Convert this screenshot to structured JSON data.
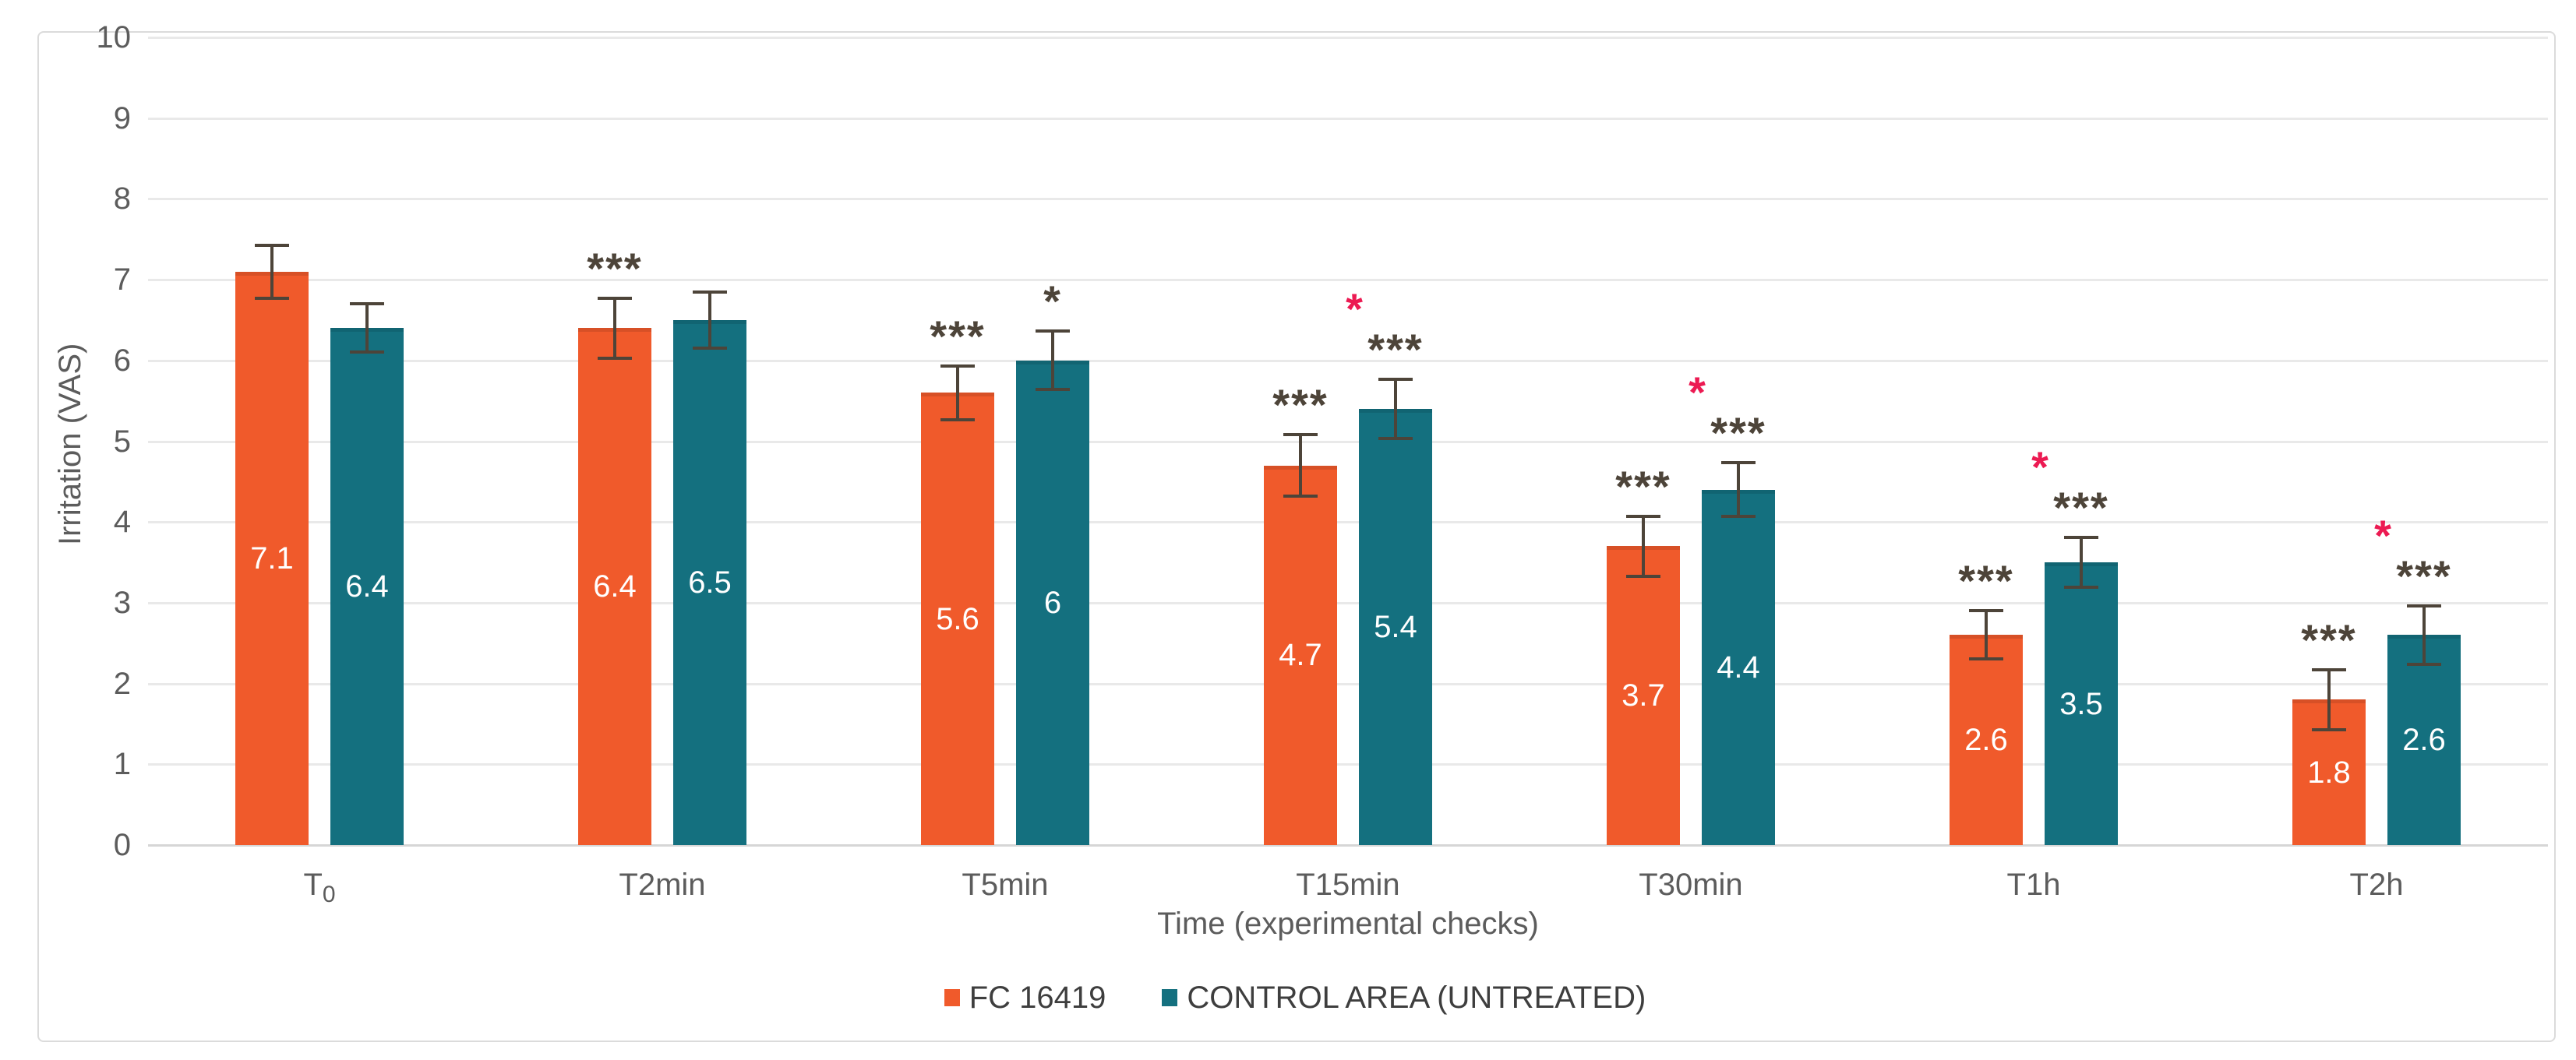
{
  "chart_data": {
    "type": "bar",
    "title": "",
    "xlabel": "Time (experimental checks)",
    "ylabel": "Irritation (VAS)",
    "ylim": [
      0,
      10
    ],
    "ytick_step": 1,
    "yticks": [
      0,
      1,
      2,
      3,
      4,
      5,
      6,
      7,
      8,
      9,
      10
    ],
    "grid": true,
    "legend_position": "bottom",
    "categories": [
      {
        "base": "T",
        "sub": "0"
      },
      {
        "base": "T2min",
        "sub": ""
      },
      {
        "base": "T5min",
        "sub": ""
      },
      {
        "base": "T15min",
        "sub": ""
      },
      {
        "base": "T30min",
        "sub": ""
      },
      {
        "base": "T1h",
        "sub": ""
      },
      {
        "base": "T2h",
        "sub": ""
      }
    ],
    "series": [
      {
        "name": "FC 16419",
        "color": "#F05A2B",
        "values": [
          7.1,
          6.4,
          5.6,
          4.7,
          3.7,
          2.6,
          1.8
        ],
        "value_labels": [
          "7.1",
          "6.4",
          "5.6",
          "4.7",
          "3.7",
          "2.6",
          "1.8"
        ],
        "errors": [
          0.33,
          0.37,
          0.33,
          0.38,
          0.37,
          0.3,
          0.37
        ],
        "significance": [
          "",
          "***",
          "***",
          "***",
          "***",
          "***",
          "***"
        ],
        "pink_star": [
          false,
          false,
          false,
          false,
          false,
          false,
          false
        ]
      },
      {
        "name": "CONTROL AREA (UNTREATED)",
        "color": "#14707F",
        "values": [
          6.4,
          6.5,
          6,
          5.4,
          4.4,
          3.5,
          2.6
        ],
        "value_labels": [
          "6.4",
          "6.5",
          "6",
          "5.4",
          "4.4",
          "3.5",
          "2.6"
        ],
        "errors": [
          0.3,
          0.35,
          0.36,
          0.37,
          0.33,
          0.31,
          0.36
        ],
        "significance": [
          "",
          "",
          "*",
          "***",
          "***",
          "***",
          "***"
        ],
        "pink_star": [
          false,
          false,
          false,
          true,
          true,
          true,
          true
        ]
      }
    ],
    "colors": {
      "error_bar": "#4D4439",
      "significance_marker": "#4D4439",
      "significance_marker_pink": "#EC1A52",
      "gridline": "#E9E9E9",
      "axis_text": "#5C5C5C",
      "legend_text": "#3E3E3E",
      "bar_value_text": "#FFFFFF",
      "frame_border": "#DBDBDB"
    }
  }
}
